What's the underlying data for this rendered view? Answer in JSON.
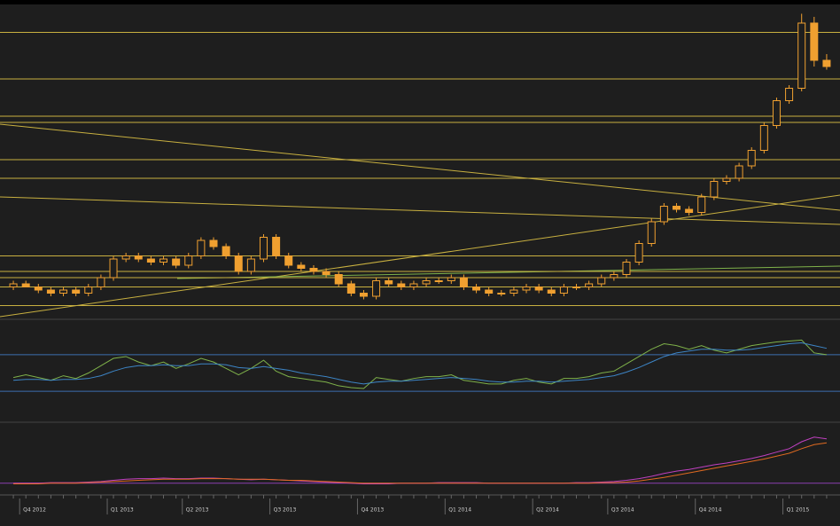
{
  "chart_data": [
    {
      "type": "candlestick",
      "color": "#f0a030",
      "level_color": "#c8b040",
      "ylim": [
        0,
        100
      ],
      "categories": [
        null,
        "Q4 2012",
        null,
        null,
        null,
        null,
        null,
        null,
        "Q1 2013",
        null,
        null,
        null,
        null,
        null,
        "Q2 2013",
        null,
        null,
        null,
        null,
        null,
        null,
        "Q3 2013",
        null,
        null,
        null,
        null,
        null,
        null,
        "Q4 2013",
        null,
        null,
        null,
        null,
        null,
        null,
        "Q1 2014",
        null,
        null,
        null,
        null,
        null,
        null,
        "Q2 2014",
        null,
        null,
        null,
        null,
        null,
        "Q3 2014",
        null,
        null,
        null,
        null,
        null,
        null,
        "Q4 2014",
        null,
        null,
        null,
        null,
        null,
        null,
        "Q1 2015",
        null,
        null,
        null
      ],
      "open": [
        9,
        10,
        9,
        8,
        7,
        8,
        7,
        9,
        12,
        18,
        19,
        18,
        17,
        18,
        16,
        19,
        24,
        22,
        19,
        14,
        18,
        25,
        19,
        16,
        15,
        14,
        13,
        10,
        7,
        6,
        11,
        10,
        9,
        10,
        11,
        11,
        12,
        9,
        8,
        7,
        7,
        8,
        9,
        8,
        7,
        9,
        9,
        10,
        12,
        13,
        17,
        23,
        30,
        35,
        34,
        33,
        38,
        43,
        44,
        48,
        53,
        61,
        69,
        73,
        94,
        82
      ],
      "high": [
        11,
        11,
        10,
        9,
        9,
        9,
        10,
        13,
        19,
        20,
        20,
        19,
        19,
        19,
        20,
        25,
        25,
        23,
        20,
        19,
        26,
        26,
        20,
        17,
        16,
        15,
        14,
        11,
        8,
        12,
        12,
        11,
        11,
        12,
        12,
        13,
        13,
        10,
        9,
        8,
        9,
        10,
        10,
        9,
        10,
        10,
        11,
        13,
        14,
        18,
        24,
        31,
        36,
        36,
        35,
        39,
        44,
        45,
        49,
        54,
        62,
        70,
        74,
        97,
        96,
        84
      ],
      "low": [
        8,
        9,
        7,
        6,
        6,
        6,
        6,
        8,
        11,
        17,
        17,
        16,
        16,
        15,
        15,
        18,
        21,
        18,
        13,
        13,
        17,
        18,
        15,
        14,
        13,
        12,
        9,
        6,
        5,
        5,
        9,
        8,
        8,
        9,
        10,
        10,
        8,
        7,
        6,
        6,
        6,
        7,
        7,
        6,
        6,
        8,
        8,
        9,
        11,
        12,
        16,
        22,
        29,
        33,
        32,
        32,
        37,
        42,
        43,
        47,
        52,
        60,
        68,
        72,
        80,
        79
      ],
      "close": [
        10,
        9,
        8,
        7,
        8,
        7,
        9,
        12,
        18,
        19,
        18,
        17,
        18,
        16,
        19,
        24,
        22,
        19,
        14,
        18,
        25,
        19,
        16,
        15,
        14,
        13,
        10,
        7,
        6,
        11,
        10,
        9,
        10,
        11,
        11,
        12,
        9,
        8,
        7,
        7,
        8,
        9,
        8,
        7,
        9,
        9,
        10,
        12,
        13,
        17,
        23,
        30,
        35,
        34,
        33,
        38,
        43,
        44,
        48,
        53,
        61,
        69,
        73,
        94,
        82,
        80
      ],
      "levels": [
        91,
        76,
        64,
        62,
        50,
        44,
        19,
        14,
        12,
        9,
        3
      ]
    },
    {
      "type": "line",
      "ylim": [
        0,
        100
      ],
      "levels": [
        70,
        30
      ],
      "level_color": "#3d6fb0",
      "series": [
        {
          "color": "#7fb24a",
          "values": [
            45,
            48,
            45,
            42,
            47,
            44,
            50,
            58,
            66,
            68,
            62,
            58,
            62,
            55,
            60,
            66,
            62,
            55,
            48,
            55,
            64,
            52,
            46,
            44,
            42,
            40,
            36,
            34,
            33,
            45,
            43,
            41,
            44,
            46,
            46,
            48,
            42,
            40,
            38,
            38,
            42,
            44,
            40,
            38,
            44,
            44,
            46,
            50,
            52,
            60,
            68,
            76,
            82,
            80,
            76,
            80,
            75,
            72,
            76,
            80,
            82,
            84,
            85,
            86,
            72,
            70
          ]
        },
        {
          "color": "#3d85c6",
          "values": [
            42,
            43,
            43,
            42,
            43,
            43,
            44,
            47,
            52,
            56,
            58,
            58,
            59,
            58,
            58,
            60,
            60,
            59,
            56,
            55,
            57,
            55,
            53,
            50,
            48,
            46,
            43,
            40,
            38,
            40,
            41,
            41,
            42,
            43,
            44,
            45,
            44,
            43,
            41,
            40,
            40,
            41,
            41,
            40,
            41,
            42,
            43,
            45,
            47,
            51,
            56,
            62,
            68,
            72,
            74,
            76,
            76,
            75,
            75,
            76,
            78,
            80,
            82,
            83,
            80,
            77
          ]
        }
      ]
    },
    {
      "type": "line",
      "ylim": [
        0,
        100
      ],
      "levels": [
        8
      ],
      "level_color": "#8a3fb0",
      "series": [
        {
          "color": "#c040c0",
          "values": [
            8,
            8,
            8,
            9,
            9,
            9,
            10,
            11,
            13,
            15,
            16,
            16,
            17,
            16,
            16,
            17,
            17,
            16,
            15,
            14,
            15,
            14,
            13,
            12,
            11,
            10,
            9,
            8,
            7,
            7,
            7,
            8,
            8,
            8,
            9,
            9,
            9,
            9,
            8,
            8,
            8,
            8,
            8,
            8,
            8,
            9,
            9,
            10,
            11,
            13,
            16,
            20,
            25,
            29,
            32,
            36,
            40,
            43,
            47,
            51,
            56,
            62,
            68,
            80,
            88,
            85
          ]
        },
        {
          "color": "#e06a20",
          "values": [
            7,
            7,
            7,
            8,
            8,
            8,
            9,
            10,
            11,
            12,
            13,
            14,
            15,
            15,
            15,
            16,
            16,
            16,
            15,
            15,
            15,
            14,
            13,
            13,
            12,
            11,
            10,
            9,
            8,
            8,
            8,
            8,
            8,
            8,
            8,
            8,
            8,
            8,
            8,
            8,
            8,
            8,
            8,
            8,
            8,
            8,
            8,
            9,
            9,
            10,
            12,
            15,
            18,
            22,
            26,
            30,
            34,
            38,
            42,
            46,
            50,
            55,
            60,
            68,
            75,
            78
          ]
        }
      ]
    }
  ]
}
